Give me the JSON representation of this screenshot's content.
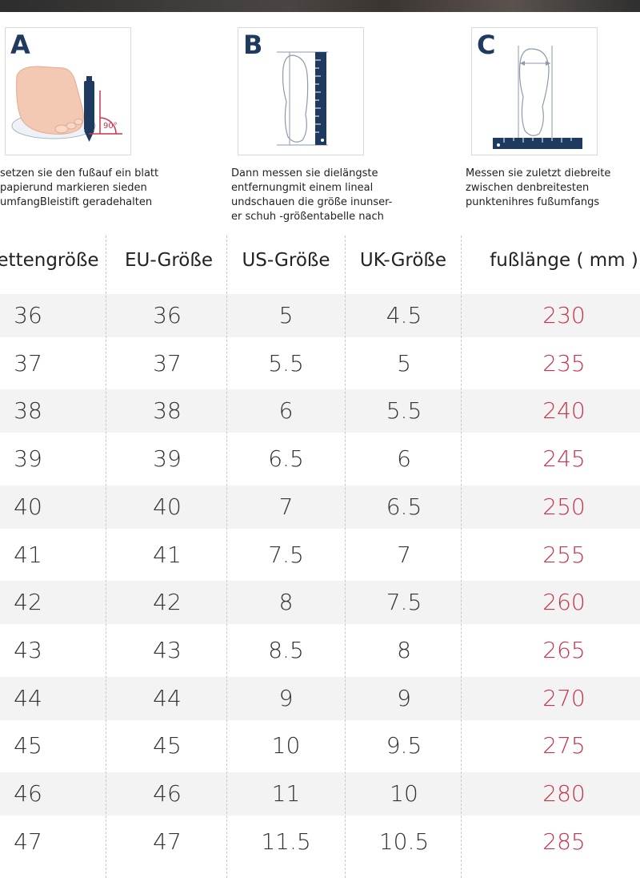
{
  "steps": [
    {
      "letter": "A",
      "text": "setzen sie den fußauf ein blatt\npapierund markieren sieden\numfangBleistift geradehalten",
      "angle_label": "90°"
    },
    {
      "letter": "B",
      "text": "Dann messen sie dielängste\nentfernungmit einem lineal\nundschauen die größe inunser-\ner schuh -größentabelle nach"
    },
    {
      "letter": "C",
      "text": "Messen sie zuletzt diebreite\nzwischen denbreitesten\npunktenihres fußumfangs"
    }
  ],
  "table": {
    "headers": [
      "ettengröße",
      "EU-Größe",
      "US-Größe",
      "UK-Größe",
      "fußlänge ( mm )"
    ],
    "rows": [
      [
        "36",
        "36",
        "5",
        "4.5",
        "230"
      ],
      [
        "37",
        "37",
        "5.5",
        "5",
        "235"
      ],
      [
        "38",
        "38",
        "6",
        "5.5",
        "240"
      ],
      [
        "39",
        "39",
        "6.5",
        "6",
        "245"
      ],
      [
        "40",
        "40",
        "7",
        "6.5",
        "250"
      ],
      [
        "41",
        "41",
        "7.5",
        "7",
        "255"
      ],
      [
        "42",
        "42",
        "8",
        "7.5",
        "260"
      ],
      [
        "43",
        "43",
        "8.5",
        "8",
        "265"
      ],
      [
        "44",
        "44",
        "9",
        "9",
        "270"
      ],
      [
        "45",
        "45",
        "10",
        "9.5",
        "275"
      ],
      [
        "46",
        "46",
        "11",
        "10",
        "280"
      ],
      [
        "47",
        "47",
        "11.5",
        "10.5",
        "285"
      ]
    ]
  },
  "colors": {
    "accent_red": "#c8354a",
    "navy": "#1f3a5f",
    "row_shade": "#f3f3f3"
  }
}
